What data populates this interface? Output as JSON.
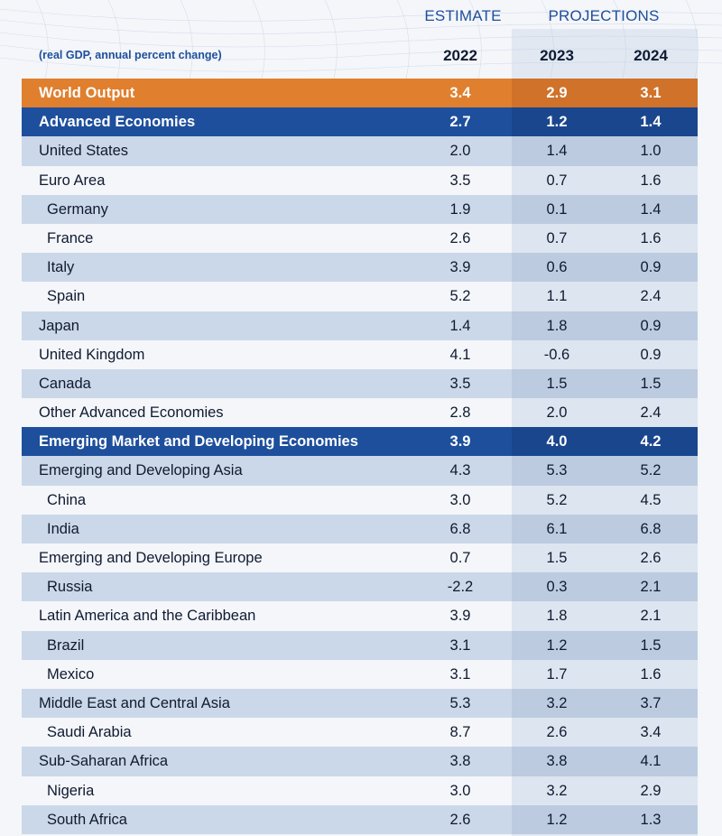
{
  "header": {
    "estimate_label": "ESTIMATE",
    "projections_label": "PROJECTIONS",
    "subtitle": "(real GDP, annual percent change)",
    "years": [
      "2022",
      "2023",
      "2024"
    ]
  },
  "colors": {
    "world_output_row": "#e07f2e",
    "group_header_row": "#1e4f9c",
    "header_text": "#1e4f9c",
    "alt_row": "#cbd8e9"
  },
  "rows": [
    {
      "label": "World Output",
      "style": "world",
      "values": [
        "3.4",
        "2.9",
        "3.1"
      ]
    },
    {
      "label": "Advanced Economies",
      "style": "adv",
      "values": [
        "2.7",
        "1.2",
        "1.4"
      ]
    },
    {
      "label": "United States",
      "style": "alt",
      "values": [
        "2.0",
        "1.4",
        "1.0"
      ]
    },
    {
      "label": "Euro Area",
      "style": "plain",
      "values": [
        "3.5",
        "0.7",
        "1.6"
      ]
    },
    {
      "label": "Germany",
      "style": "alt sub",
      "values": [
        "1.9",
        "0.1",
        "1.4"
      ]
    },
    {
      "label": "France",
      "style": "plain sub",
      "values": [
        "2.6",
        "0.7",
        "1.6"
      ]
    },
    {
      "label": "Italy",
      "style": "alt sub",
      "values": [
        "3.9",
        "0.6",
        "0.9"
      ]
    },
    {
      "label": "Spain",
      "style": "plain sub",
      "values": [
        "5.2",
        "1.1",
        "2.4"
      ]
    },
    {
      "label": "Japan",
      "style": "alt",
      "values": [
        "1.4",
        "1.8",
        "0.9"
      ]
    },
    {
      "label": "United Kingdom",
      "style": "plain",
      "values": [
        "4.1",
        "-0.6",
        "0.9"
      ]
    },
    {
      "label": "Canada",
      "style": "alt",
      "values": [
        "3.5",
        "1.5",
        "1.5"
      ]
    },
    {
      "label": "Other Advanced Economies",
      "style": "plain",
      "values": [
        "2.8",
        "2.0",
        "2.4"
      ]
    },
    {
      "label": "Emerging Market and Developing Economies",
      "style": "emerging",
      "values": [
        "3.9",
        "4.0",
        "4.2"
      ]
    },
    {
      "label": "Emerging and Developing Asia",
      "style": "alt",
      "values": [
        "4.3",
        "5.3",
        "5.2"
      ]
    },
    {
      "label": "China",
      "style": "plain sub",
      "values": [
        "3.0",
        "5.2",
        "4.5"
      ]
    },
    {
      "label": "India",
      "style": "alt sub",
      "values": [
        "6.8",
        "6.1",
        "6.8"
      ]
    },
    {
      "label": "Emerging and Developing Europe",
      "style": "plain",
      "values": [
        "0.7",
        "1.5",
        "2.6"
      ]
    },
    {
      "label": "Russia",
      "style": "alt sub",
      "values": [
        "-2.2",
        "0.3",
        "2.1"
      ]
    },
    {
      "label": "Latin America and the Caribbean",
      "style": "plain",
      "values": [
        "3.9",
        "1.8",
        "2.1"
      ]
    },
    {
      "label": "Brazil",
      "style": "alt sub",
      "values": [
        "3.1",
        "1.2",
        "1.5"
      ]
    },
    {
      "label": "Mexico",
      "style": "plain sub",
      "values": [
        "3.1",
        "1.7",
        "1.6"
      ]
    },
    {
      "label": "Middle East and Central Asia",
      "style": "alt",
      "values": [
        "5.3",
        "3.2",
        "3.7"
      ]
    },
    {
      "label": "Saudi Arabia",
      "style": "plain sub",
      "values": [
        "8.7",
        "2.6",
        "3.4"
      ]
    },
    {
      "label": "Sub-Saharan Africa",
      "style": "alt",
      "values": [
        "3.8",
        "3.8",
        "4.1"
      ]
    },
    {
      "label": "Nigeria",
      "style": "plain sub",
      "values": [
        "3.0",
        "3.2",
        "2.9"
      ]
    },
    {
      "label": "South Africa",
      "style": "alt sub",
      "values": [
        "2.6",
        "1.2",
        "1.3"
      ]
    }
  ]
}
